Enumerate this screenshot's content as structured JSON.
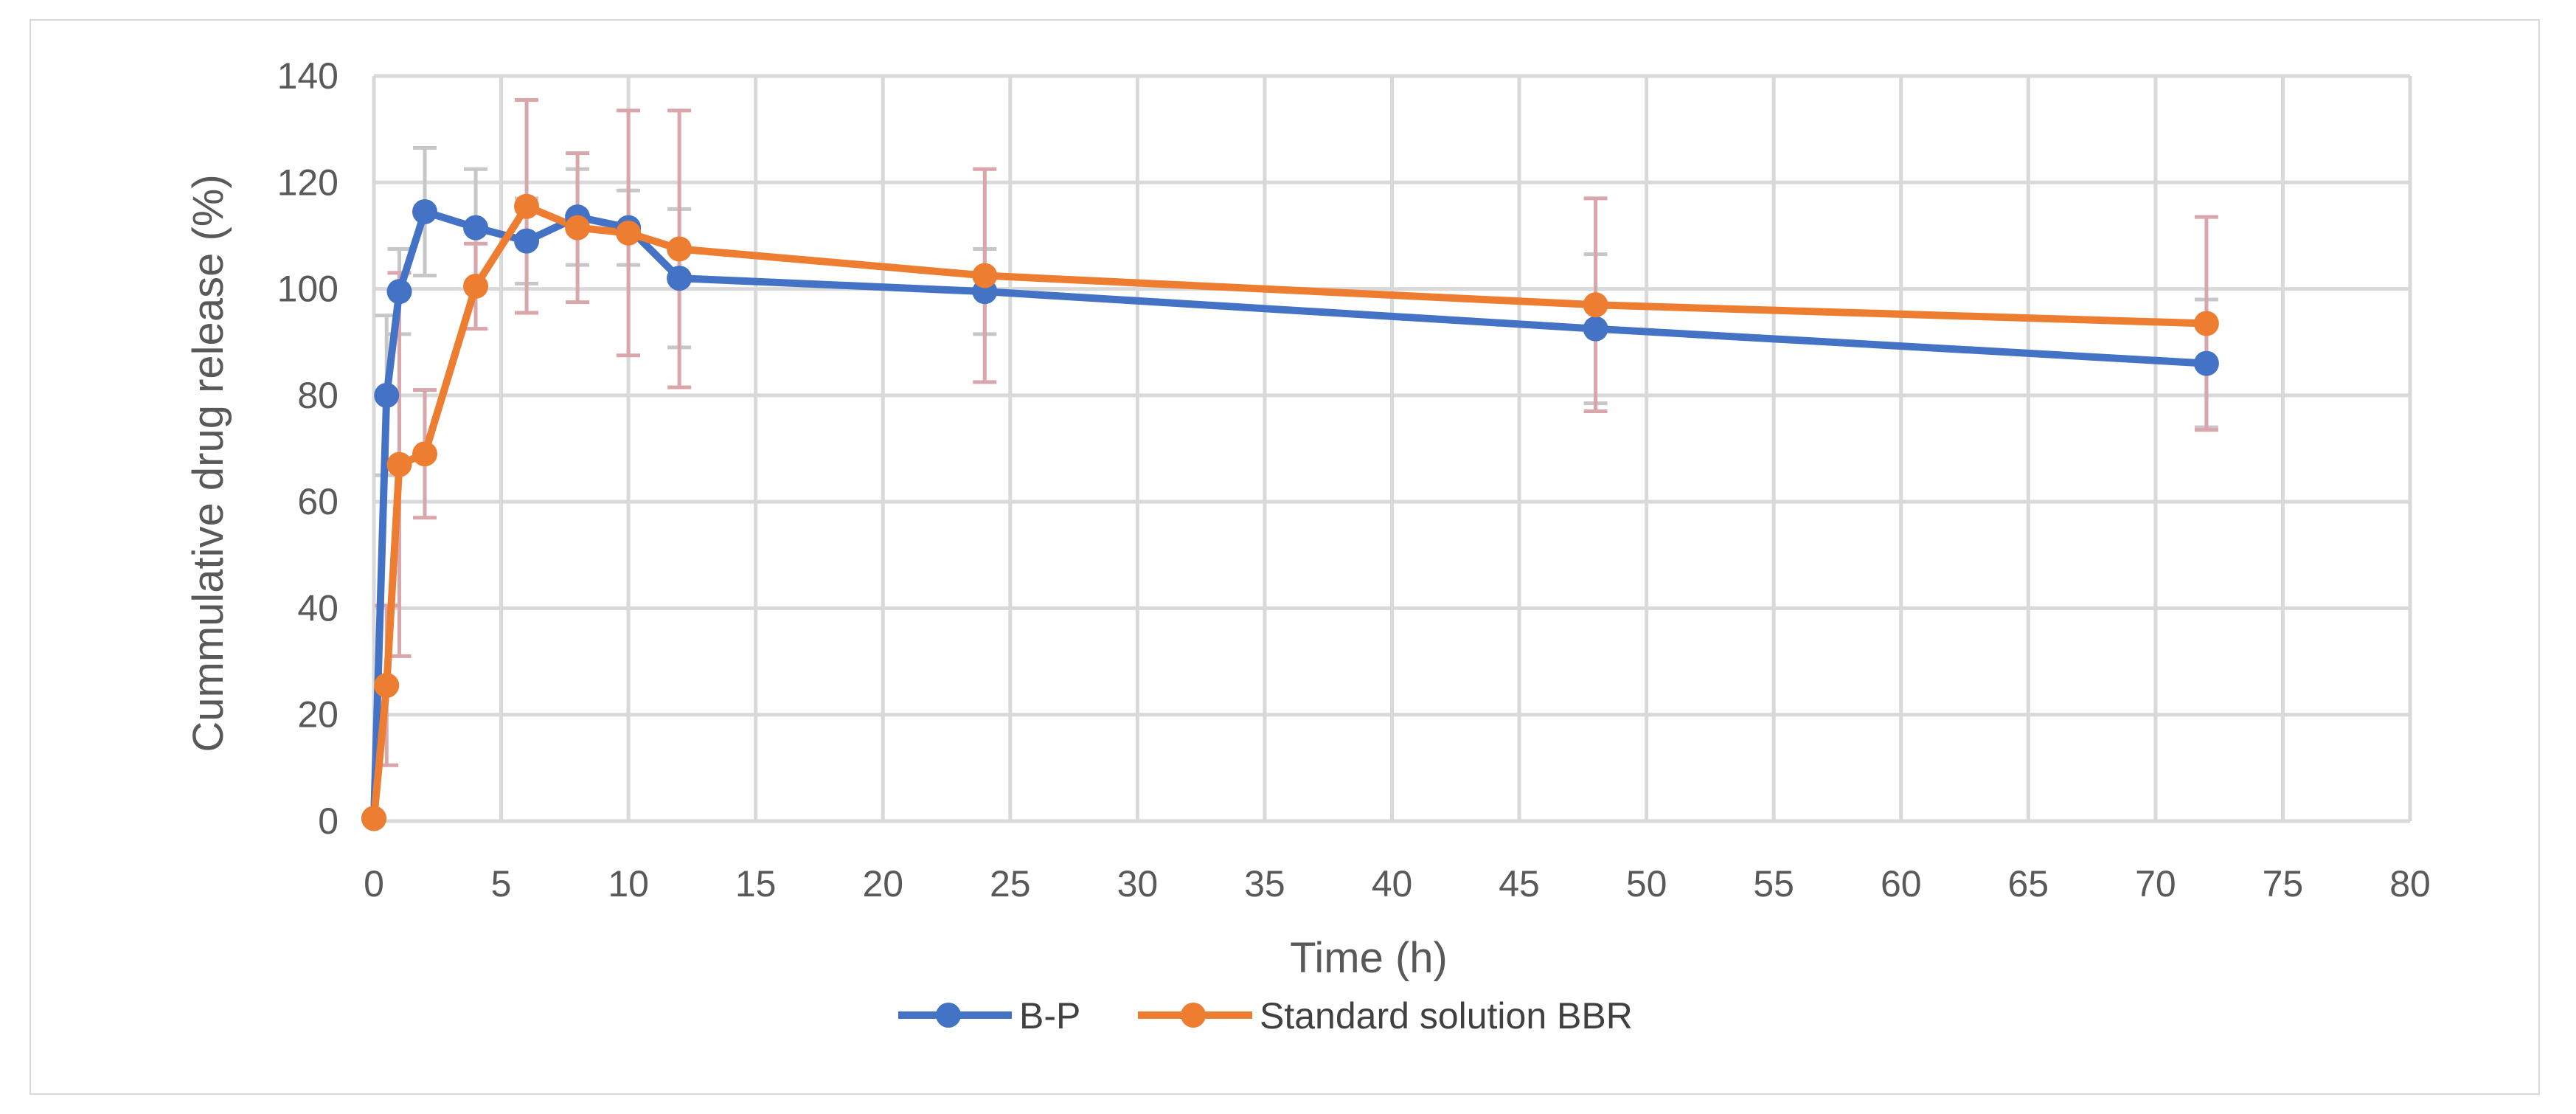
{
  "chart_data": {
    "type": "line",
    "title": "",
    "xlabel": "Time (h)",
    "ylabel": "Cummulative drug release (%)",
    "xlim": [
      0,
      80
    ],
    "ylim": [
      0,
      140
    ],
    "xticks": [
      0,
      5,
      10,
      15,
      20,
      25,
      30,
      35,
      40,
      45,
      50,
      55,
      60,
      65,
      70,
      75,
      80
    ],
    "yticks": [
      0,
      20,
      40,
      60,
      80,
      100,
      120,
      140
    ],
    "grid": true,
    "legend": "bottom",
    "series": [
      {
        "name": "B-P",
        "color": "#4472c4",
        "x": [
          0,
          0.5,
          1,
          2,
          4,
          6,
          8,
          10,
          12,
          24,
          48,
          72
        ],
        "y": [
          0.5,
          80,
          99.5,
          114.5,
          111.5,
          109,
          113.5,
          111.5,
          102,
          99.5,
          92.5,
          86
        ],
        "err": [
          0,
          15,
          8,
          12,
          11,
          8,
          9,
          7,
          13,
          8,
          14,
          12
        ]
      },
      {
        "name": "Standard solution BBR",
        "color": "#ed7d31",
        "x": [
          0,
          0.5,
          1,
          2,
          4,
          6,
          8,
          10,
          12,
          24,
          48,
          72
        ],
        "y": [
          0.5,
          25.5,
          67,
          69,
          100.5,
          115.5,
          111.5,
          110.5,
          107.5,
          102.5,
          97,
          93.5
        ],
        "err": [
          0,
          15,
          36,
          12,
          8,
          20,
          14,
          23,
          26,
          20,
          20,
          20
        ]
      }
    ]
  }
}
